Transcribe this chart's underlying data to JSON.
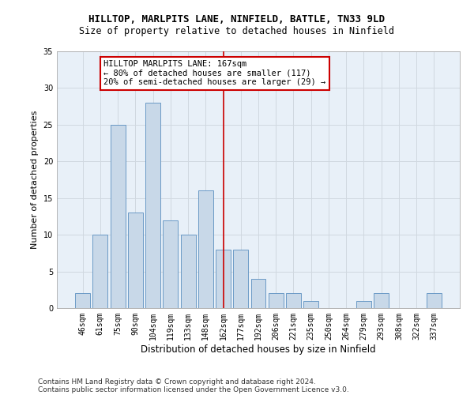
{
  "title_line1": "HILLTOP, MARLPITS LANE, NINFIELD, BATTLE, TN33 9LD",
  "title_line2": "Size of property relative to detached houses in Ninfield",
  "xlabel": "Distribution of detached houses by size in Ninfield",
  "ylabel": "Number of detached properties",
  "categories": [
    "46sqm",
    "61sqm",
    "75sqm",
    "90sqm",
    "104sqm",
    "119sqm",
    "133sqm",
    "148sqm",
    "162sqm",
    "177sqm",
    "192sqm",
    "206sqm",
    "221sqm",
    "235sqm",
    "250sqm",
    "264sqm",
    "279sqm",
    "293sqm",
    "308sqm",
    "322sqm",
    "337sqm"
  ],
  "values": [
    2,
    10,
    25,
    13,
    28,
    12,
    10,
    16,
    8,
    8,
    4,
    2,
    2,
    1,
    0,
    0,
    1,
    2,
    0,
    0,
    2
  ],
  "bar_color": "#c8d8e8",
  "bar_edgecolor": "#5a8fc0",
  "vline_x": 8,
  "vline_color": "#cc0000",
  "annotation_text": "HILLTOP MARLPITS LANE: 167sqm\n← 80% of detached houses are smaller (117)\n20% of semi-detached houses are larger (29) →",
  "annotation_box_color": "#cc0000",
  "annotation_bg": "#ffffff",
  "ylim": [
    0,
    35
  ],
  "yticks": [
    0,
    5,
    10,
    15,
    20,
    25,
    30,
    35
  ],
  "grid_color": "#d0d8e0",
  "background_color": "#e8f0f8",
  "footer_line1": "Contains HM Land Registry data © Crown copyright and database right 2024.",
  "footer_line2": "Contains public sector information licensed under the Open Government Licence v3.0.",
  "title_fontsize": 9,
  "subtitle_fontsize": 8.5,
  "xlabel_fontsize": 8.5,
  "ylabel_fontsize": 8,
  "tick_fontsize": 7,
  "footer_fontsize": 6.5,
  "annotation_fontsize": 7.5
}
